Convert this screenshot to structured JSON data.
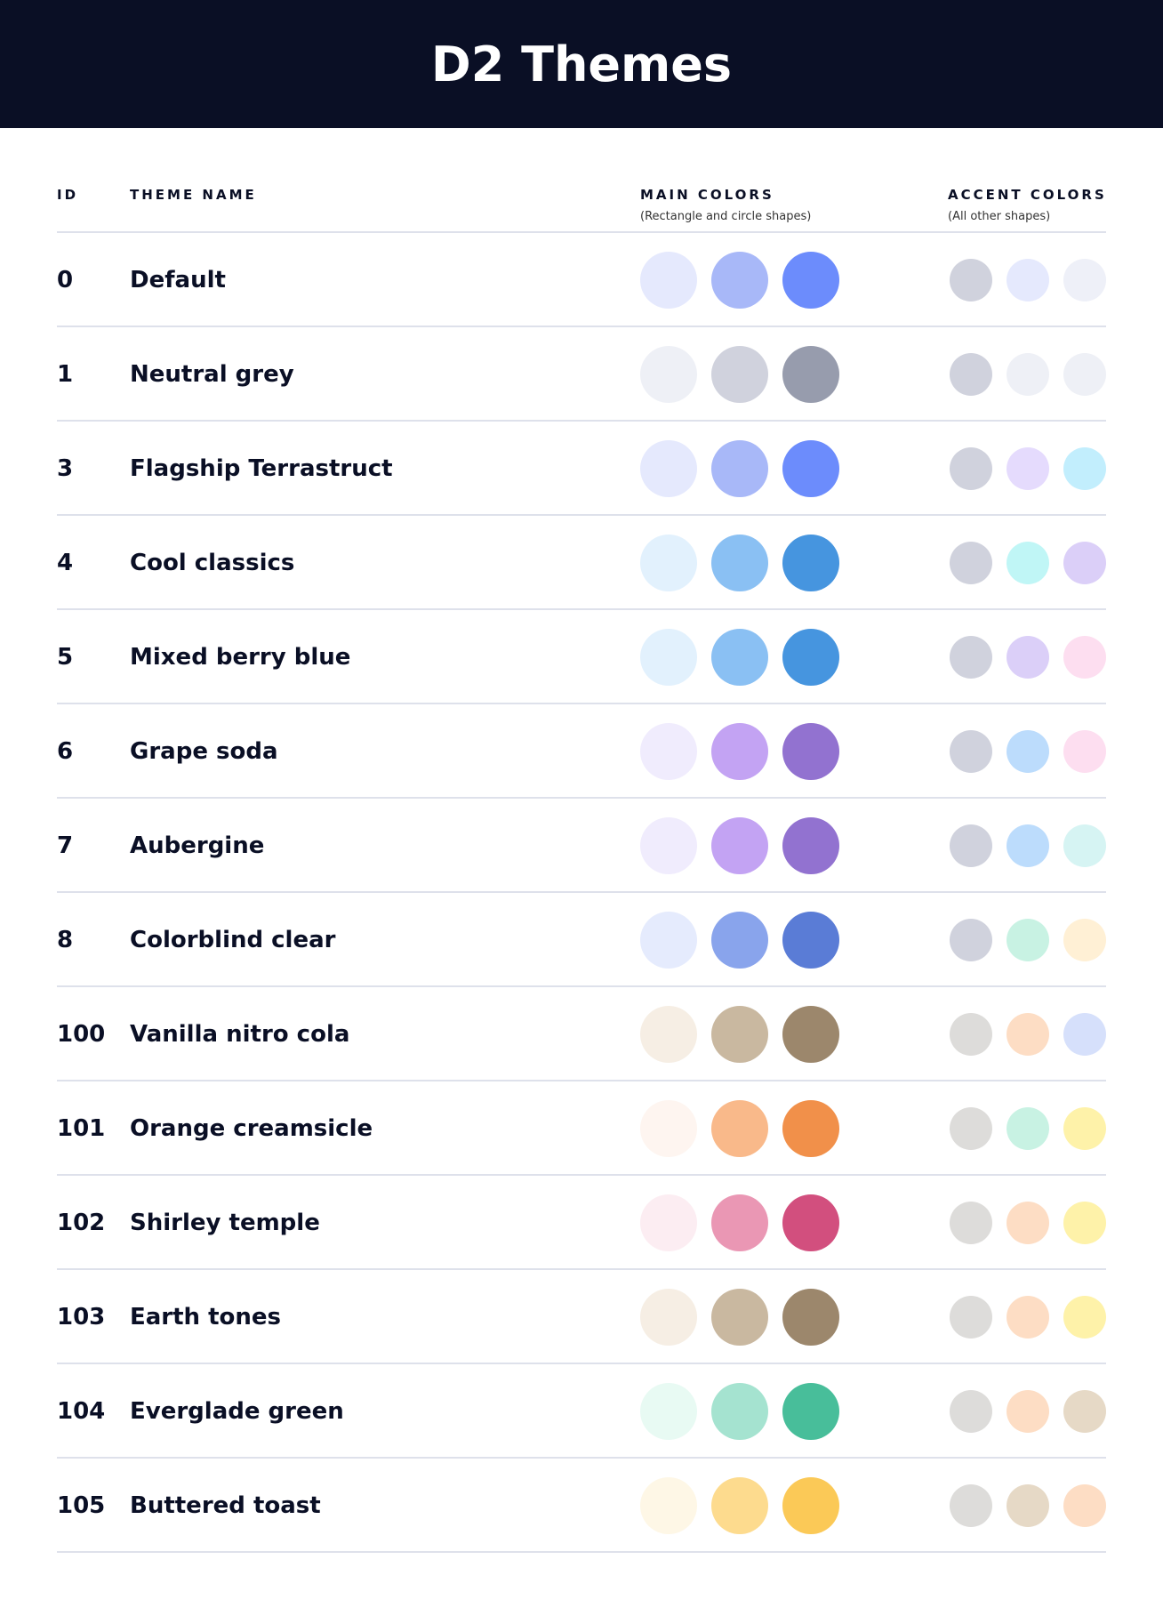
{
  "title": "D2 Themes",
  "columns": {
    "id": "ID",
    "name": "THEME NAME",
    "main": "MAIN COLORS",
    "main_sub": "(Rectangle and circle shapes)",
    "accent": "ACCENT COLORS",
    "accent_sub": "(All other shapes)"
  },
  "themes": [
    {
      "id": "0",
      "name": "Default",
      "main": [
        "#E5E9FD",
        "#A8B8F8",
        "#6C8CFC"
      ],
      "accent": [
        "#D0D2DD",
        "#E5E9FD",
        "#EEF0F8"
      ]
    },
    {
      "id": "1",
      "name": "Neutral grey",
      "main": [
        "#EEF0F6",
        "#D0D2DD",
        "#979CAD"
      ],
      "accent": [
        "#D0D2DD",
        "#EEF0F6",
        "#EEF0F6"
      ]
    },
    {
      "id": "3",
      "name": "Flagship Terrastruct",
      "main": [
        "#E5E9FD",
        "#A8B8F8",
        "#6C8CFC"
      ],
      "accent": [
        "#D0D2DD",
        "#E5DBFD",
        "#C2EEFD"
      ]
    },
    {
      "id": "4",
      "name": "Cool classics",
      "main": [
        "#E2F1FD",
        "#8AC0F3",
        "#4695DF"
      ],
      "accent": [
        "#D0D2DD",
        "#C0F6F6",
        "#DBCFF8"
      ]
    },
    {
      "id": "5",
      "name": "Mixed berry blue",
      "main": [
        "#E2F1FD",
        "#8AC0F3",
        "#4695DF"
      ],
      "accent": [
        "#D0D2DD",
        "#DBCFF8",
        "#FDDEF0"
      ]
    },
    {
      "id": "6",
      "name": "Grape soda",
      "main": [
        "#F0ECFD",
        "#C3A3F3",
        "#9272D0"
      ],
      "accent": [
        "#D0D2DD",
        "#BCDCFC",
        "#FDDEF0"
      ]
    },
    {
      "id": "7",
      "name": "Aubergine",
      "main": [
        "#F0ECFD",
        "#C3A3F3",
        "#9272D0"
      ],
      "accent": [
        "#D0D2DD",
        "#BCDCFC",
        "#D6F4F3"
      ]
    },
    {
      "id": "8",
      "name": "Colorblind clear",
      "main": [
        "#E5EBFD",
        "#89A4EC",
        "#5A7CD6"
      ],
      "accent": [
        "#D0D2DD",
        "#C8F2E3",
        "#FFF0D5"
      ]
    },
    {
      "id": "100",
      "name": "Vanilla nitro cola",
      "main": [
        "#F6EEE4",
        "#C9B8A0",
        "#9C876C"
      ],
      "accent": [
        "#DDDCDA",
        "#FDDDC4",
        "#D6E0FB"
      ]
    },
    {
      "id": "101",
      "name": "Orange creamsicle",
      "main": [
        "#FEF5F0",
        "#F9B98A",
        "#F1904A"
      ],
      "accent": [
        "#DDDCDA",
        "#C8F2E3",
        "#FEF2A9"
      ]
    },
    {
      "id": "102",
      "name": "Shirley temple",
      "main": [
        "#FCEDF2",
        "#EA97B4",
        "#D24F7E"
      ],
      "accent": [
        "#DDDCDA",
        "#FDDDC4",
        "#FEF2A9"
      ]
    },
    {
      "id": "103",
      "name": "Earth tones",
      "main": [
        "#F6EEE4",
        "#C9B8A0",
        "#9C876C"
      ],
      "accent": [
        "#DDDCDA",
        "#FDDDC4",
        "#FEF2A9"
      ]
    },
    {
      "id": "104",
      "name": "Everglade green",
      "main": [
        "#E8FAF3",
        "#A5E3D0",
        "#48BE9A"
      ],
      "accent": [
        "#DDDCDA",
        "#FDDDC4",
        "#E6D9C6"
      ]
    },
    {
      "id": "105",
      "name": "Buttered toast",
      "main": [
        "#FEF7E6",
        "#FDDB8E",
        "#FBC957"
      ],
      "accent": [
        "#DDDCDA",
        "#E6D9C6",
        "#FDDDC4"
      ]
    }
  ]
}
